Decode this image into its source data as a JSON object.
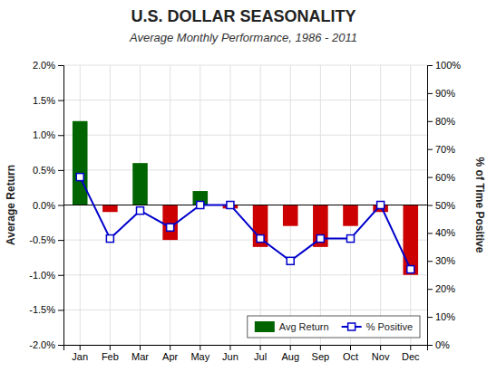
{
  "chart_data": {
    "type": "bar",
    "title": "U.S. DOLLAR SEASONALITY",
    "subtitle": "Average Monthly Performance, 1986 - 2011",
    "categories": [
      "Jan",
      "Feb",
      "Mar",
      "Apr",
      "May",
      "Jun",
      "Jul",
      "Aug",
      "Sep",
      "Oct",
      "Nov",
      "Dec"
    ],
    "series": [
      {
        "name": "Avg Return",
        "type": "bar",
        "color": "#006400",
        "colors": [
          "#006400",
          "#cc0000",
          "#006400",
          "#cc0000",
          "#006400",
          "#cc0000",
          "#cc0000",
          "#cc0000",
          "#cc0000",
          "#cc0000",
          "#cc0000",
          "#cc0000"
        ],
        "values": [
          0.012,
          -0.001,
          0.006,
          -0.005,
          0.002,
          -0.0005,
          -0.006,
          -0.003,
          -0.006,
          -0.003,
          -0.001,
          -0.01
        ]
      },
      {
        "name": "% Positive",
        "type": "line",
        "axis": "y2",
        "color": "#0000cc",
        "marker": "square",
        "values": [
          0.6,
          0.38,
          0.48,
          0.42,
          0.5,
          0.5,
          0.38,
          0.3,
          0.38,
          0.38,
          0.5,
          0.27
        ]
      }
    ],
    "ylabel": "Average Return",
    "y2label": "% of Time Positive",
    "ylim": [
      -0.02,
      0.02
    ],
    "yticks": [
      {
        "value": -0.02,
        "label": "-2.0%"
      },
      {
        "value": -0.015,
        "label": "-1.5%"
      },
      {
        "value": -0.01,
        "label": "-1.0%"
      },
      {
        "value": -0.005,
        "label": "-0.5%"
      },
      {
        "value": 0,
        "label": "0.0%"
      },
      {
        "value": 0.005,
        "label": "0.5%"
      },
      {
        "value": 0.01,
        "label": "1.0%"
      },
      {
        "value": 0.015,
        "label": "1.5%"
      },
      {
        "value": 0.02,
        "label": "2.0%"
      }
    ],
    "y2lim": [
      0.0,
      1.0
    ],
    "y2ticks": [
      {
        "value": 0,
        "label": "0%"
      },
      {
        "value": 0.1,
        "label": "10%"
      },
      {
        "value": 0.2,
        "label": "20%"
      },
      {
        "value": 0.3,
        "label": "30%"
      },
      {
        "value": 0.4,
        "label": "40%"
      },
      {
        "value": 0.5,
        "label": "50%"
      },
      {
        "value": 0.6,
        "label": "60%"
      },
      {
        "value": 0.7,
        "label": "70%"
      },
      {
        "value": 0.8,
        "label": "80%"
      },
      {
        "value": 0.9,
        "label": "90%"
      },
      {
        "value": 1.0,
        "label": "100%"
      }
    ],
    "grid": true,
    "legend": "lower right"
  }
}
